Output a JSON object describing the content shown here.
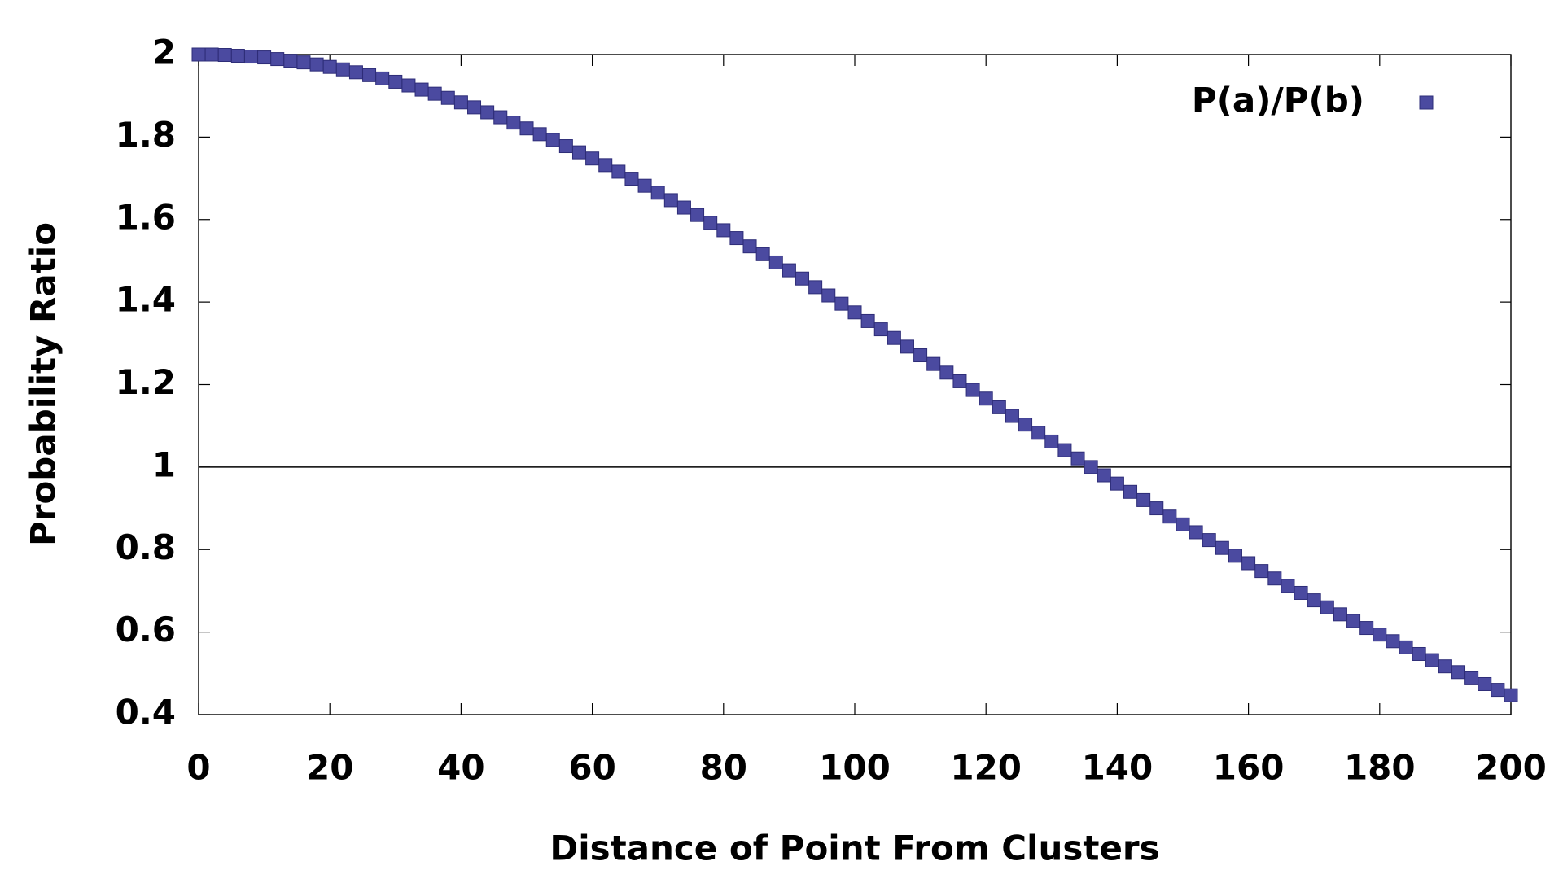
{
  "chart_data": {
    "type": "scatter",
    "xlabel": "Distance of Point From Clusters",
    "ylabel": "Probability Ratio",
    "xlim": [
      0,
      200
    ],
    "ylim": [
      0.4,
      2
    ],
    "xticks": [
      0,
      20,
      40,
      60,
      80,
      100,
      120,
      140,
      160,
      180,
      200
    ],
    "yticks": [
      0.4,
      0.6,
      0.8,
      1,
      1.2,
      1.4,
      1.6,
      1.8,
      2
    ],
    "grid": false,
    "hline": 1,
    "legend_position": "top-right",
    "x": [
      0,
      2,
      4,
      6,
      8,
      10,
      12,
      14,
      16,
      18,
      20,
      22,
      24,
      26,
      28,
      30,
      32,
      34,
      36,
      38,
      40,
      42,
      44,
      46,
      48,
      50,
      52,
      54,
      56,
      58,
      60,
      62,
      64,
      66,
      68,
      70,
      72,
      74,
      76,
      78,
      80,
      82,
      84,
      86,
      88,
      90,
      92,
      94,
      96,
      98,
      100,
      102,
      104,
      106,
      108,
      110,
      112,
      114,
      116,
      118,
      120,
      122,
      124,
      126,
      128,
      130,
      132,
      134,
      136,
      138,
      140,
      142,
      144,
      146,
      148,
      150,
      152,
      154,
      156,
      158,
      160,
      162,
      164,
      166,
      168,
      170,
      172,
      174,
      176,
      178,
      180,
      182,
      184,
      186,
      188,
      190,
      192,
      194,
      196,
      198,
      200
    ],
    "series": [
      {
        "name": "P(a)/P(b)",
        "color": "#4b4aa0",
        "values": [
          2.0,
          2.0,
          1.999,
          1.997,
          1.995,
          1.993,
          1.989,
          1.985,
          1.981,
          1.976,
          1.97,
          1.964,
          1.957,
          1.95,
          1.942,
          1.934,
          1.925,
          1.915,
          1.905,
          1.895,
          1.884,
          1.872,
          1.86,
          1.848,
          1.835,
          1.821,
          1.807,
          1.793,
          1.778,
          1.763,
          1.748,
          1.732,
          1.716,
          1.699,
          1.682,
          1.665,
          1.647,
          1.629,
          1.611,
          1.592,
          1.574,
          1.555,
          1.535,
          1.516,
          1.496,
          1.477,
          1.457,
          1.436,
          1.416,
          1.396,
          1.375,
          1.354,
          1.334,
          1.313,
          1.292,
          1.271,
          1.25,
          1.229,
          1.208,
          1.187,
          1.166,
          1.145,
          1.124,
          1.103,
          1.083,
          1.062,
          1.041,
          1.021,
          1.0,
          0.98,
          0.96,
          0.94,
          0.92,
          0.9,
          0.88,
          0.861,
          0.842,
          0.823,
          0.804,
          0.785,
          0.767,
          0.748,
          0.73,
          0.712,
          0.695,
          0.677,
          0.66,
          0.643,
          0.627,
          0.61,
          0.594,
          0.578,
          0.563,
          0.547,
          0.532,
          0.517,
          0.503,
          0.488,
          0.474,
          0.46,
          0.447
        ]
      }
    ]
  }
}
